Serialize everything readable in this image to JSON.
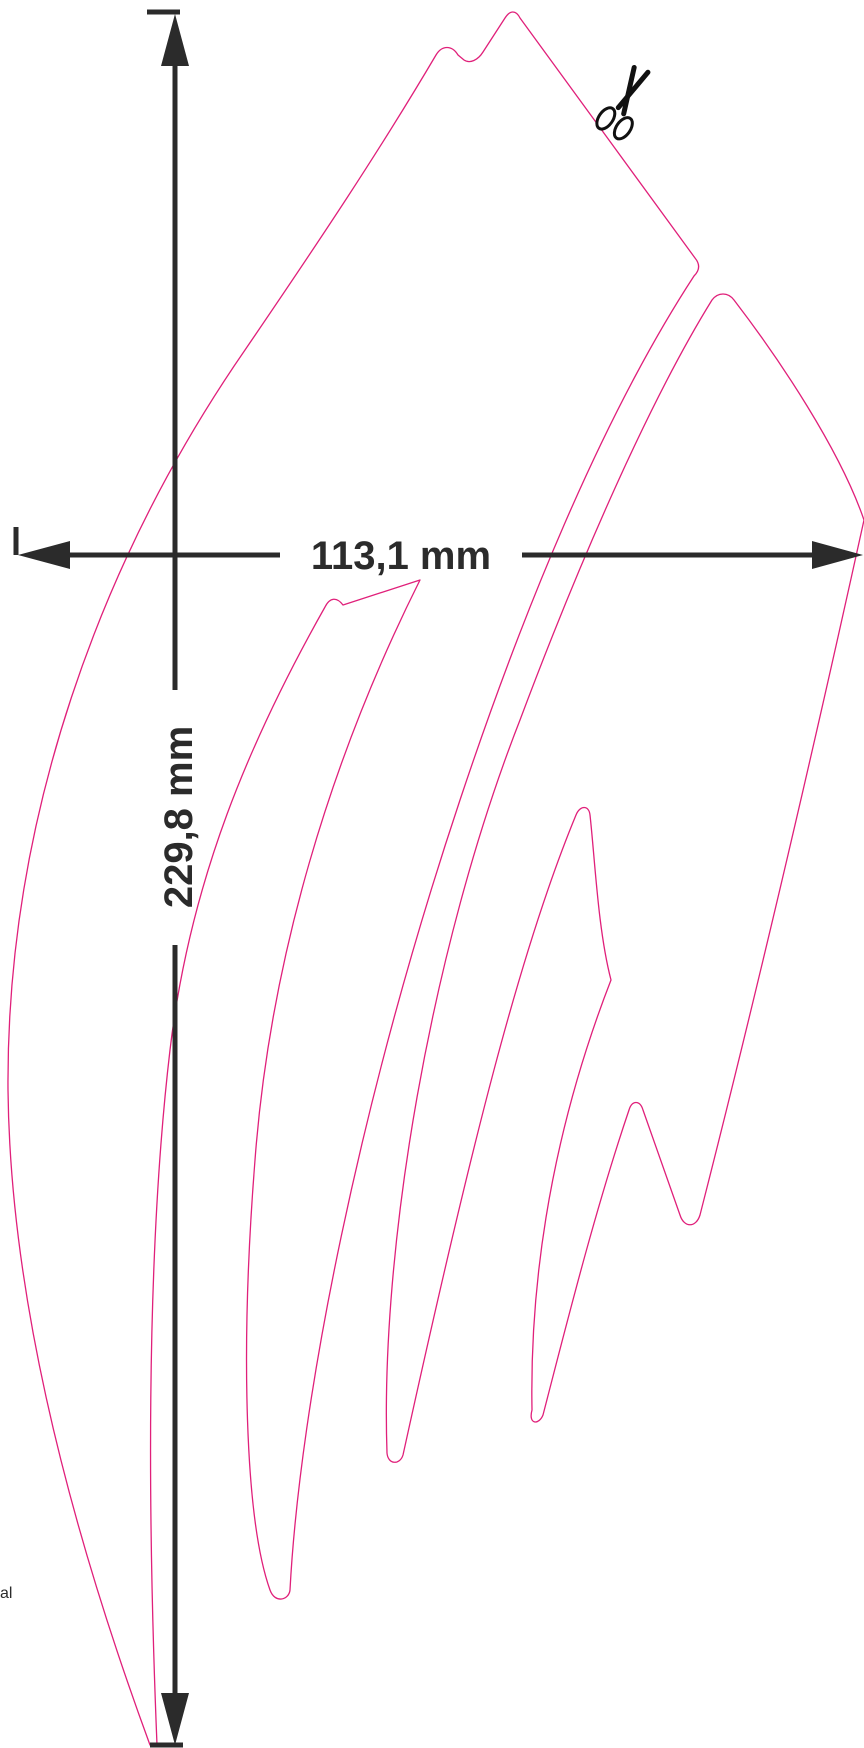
{
  "dimensions": {
    "width_label": "113,1 mm",
    "height_label": "229,8 mm"
  },
  "side_note": "al",
  "colors": {
    "cut_line": "#e0207a",
    "dimension_line": "#2b2b2b"
  },
  "icons": {
    "cut_marker": "scissors-icon"
  }
}
